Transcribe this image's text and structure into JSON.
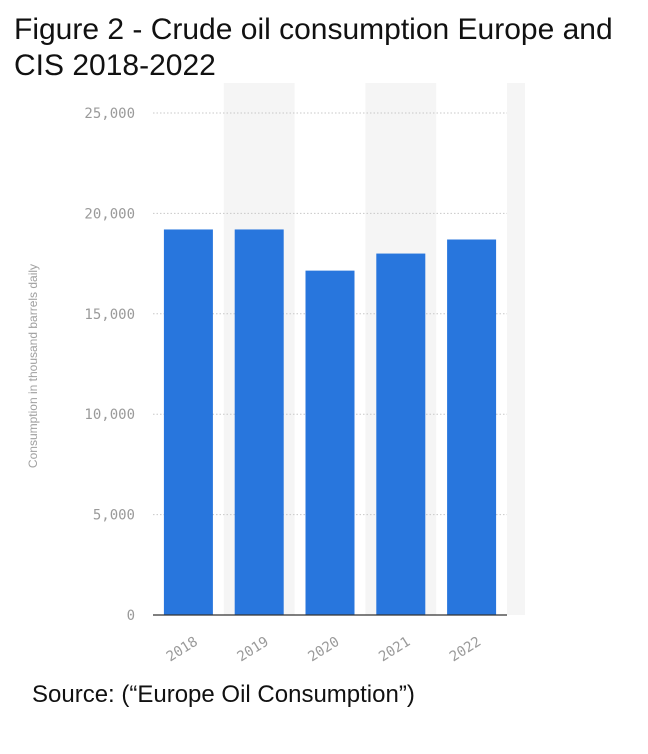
{
  "figure": {
    "title": "Figure 2 - Crude oil consumption Europe and CIS 2018-2022",
    "source": "Source: (“Europe Oil Consumption”)"
  },
  "chart_data": {
    "type": "bar",
    "categories": [
      "2018",
      "2019",
      "2020",
      "2021",
      "2022"
    ],
    "values": [
      19200,
      19200,
      17150,
      18000,
      18700
    ],
    "ylabel": "Consumption in thousand barrels daily",
    "ylim": [
      0,
      25000
    ],
    "yticks": [
      0,
      5000,
      10000,
      15000,
      20000,
      25000
    ],
    "ytick_labels": [
      "0",
      "5,000",
      "10,000",
      "15,000",
      "20,000",
      "25,000"
    ],
    "bar_color": "#2876dd",
    "grid": true,
    "legend": "none"
  }
}
